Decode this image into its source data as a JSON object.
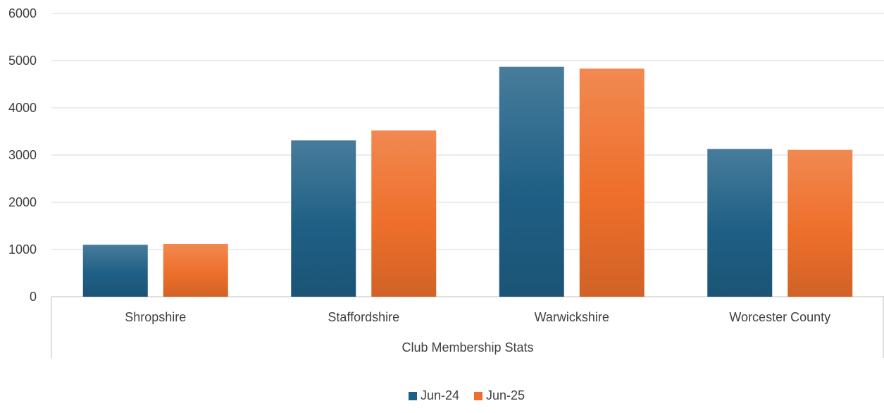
{
  "chart_data": {
    "type": "bar",
    "title": "",
    "xlabel": "",
    "ylabel": "",
    "group_label": "Club Membership Stats",
    "categories": [
      "Shropshire",
      "Staffordshire",
      "Warwickshire",
      "Worcester County"
    ],
    "series": [
      {
        "name": "Jun-24",
        "color": "#1f5f85",
        "values": [
          1100,
          3310,
          4870,
          3130
        ]
      },
      {
        "name": "Jun-25",
        "color": "#ee6f2b",
        "values": [
          1120,
          3520,
          4830,
          3110
        ]
      }
    ],
    "yticks": [
      "0",
      "1000",
      "2000",
      "3000",
      "4000",
      "5000",
      "6000"
    ],
    "ylim": [
      0,
      6000
    ],
    "grid": true,
    "legend": "bottom-center"
  }
}
